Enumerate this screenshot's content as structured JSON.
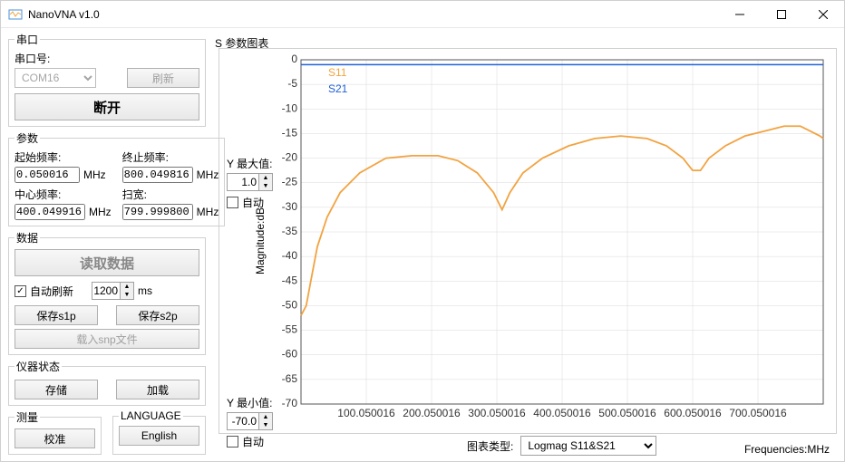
{
  "window": {
    "title": "NanoVNA v1.0"
  },
  "serial": {
    "legend": "串口",
    "port_label": "串口号:",
    "port_value": "COM16",
    "refresh": "刷新",
    "disconnect": "断开"
  },
  "params": {
    "legend": "参数",
    "start_label": "起始频率:",
    "start_value": "0.050016",
    "stop_label": "终止频率:",
    "stop_value": "800.049816",
    "center_label": "中心频率:",
    "center_value": "400.049916",
    "span_label": "扫宽:",
    "span_value": "799.999800",
    "unit": "MHz"
  },
  "data": {
    "legend": "数据",
    "read": "读取数据",
    "auto_refresh": "自动刷新",
    "auto_refresh_checked": true,
    "interval": "1200",
    "interval_unit": "ms",
    "save_s1p": "保存s1p",
    "save_s2p": "保存s2p",
    "load_snp": "载入snp文件"
  },
  "instrument": {
    "legend": "仪器状态",
    "store": "存储",
    "load": "加载"
  },
  "measure": {
    "legend": "测量",
    "calibrate": "校准"
  },
  "language": {
    "legend": "LANGUAGE",
    "english": "English"
  },
  "chart": {
    "title": "S 参数图表",
    "ymax_label": "Y 最大值:",
    "ymax_value": "1.0",
    "ymin_label": "Y 最小值:",
    "ymin_value": "-70.0",
    "auto_label": "自动",
    "ylabel": "Magnitude:dB",
    "xlabel": "Frequencies:MHz",
    "type_label": "图表类型:",
    "type_value": "Logmag S11&S21",
    "legend_s11": "S11",
    "legend_s21": "S21",
    "colors": {
      "s11": "#f2a341",
      "s21": "#1f5fd6",
      "grid": "#d8d8d8",
      "axis": "#555555",
      "bg": "#ffffff"
    },
    "ylim": [
      -70,
      0
    ],
    "yticks": [
      0,
      -5,
      -10,
      -15,
      -20,
      -25,
      -30,
      -35,
      -40,
      -45,
      -50,
      -55,
      -60,
      -65,
      -70
    ],
    "xticks": [
      "100.050016",
      "200.050016",
      "300.050016",
      "400.050016",
      "500.050016",
      "600.050016",
      "700.050016"
    ],
    "xtick_vals": [
      100,
      200,
      300,
      400,
      500,
      600,
      700
    ],
    "xlim": [
      0,
      800
    ],
    "s21_y": -1,
    "s11_path": [
      [
        0,
        -52
      ],
      [
        8,
        -50
      ],
      [
        15,
        -45
      ],
      [
        25,
        -38
      ],
      [
        40,
        -32
      ],
      [
        60,
        -27
      ],
      [
        90,
        -23
      ],
      [
        130,
        -20
      ],
      [
        170,
        -19.5
      ],
      [
        210,
        -19.5
      ],
      [
        240,
        -20.5
      ],
      [
        270,
        -23
      ],
      [
        295,
        -27
      ],
      [
        308,
        -30.5
      ],
      [
        320,
        -27
      ],
      [
        340,
        -23
      ],
      [
        370,
        -20
      ],
      [
        410,
        -17.5
      ],
      [
        450,
        -16
      ],
      [
        490,
        -15.5
      ],
      [
        530,
        -16
      ],
      [
        560,
        -17.5
      ],
      [
        585,
        -20
      ],
      [
        600,
        -22.5
      ],
      [
        612,
        -22.5
      ],
      [
        625,
        -20
      ],
      [
        650,
        -17.5
      ],
      [
        680,
        -15.5
      ],
      [
        710,
        -14.5
      ],
      [
        740,
        -13.5
      ],
      [
        765,
        -13.5
      ],
      [
        780,
        -14.5
      ],
      [
        795,
        -15.5
      ],
      [
        800,
        -16
      ]
    ]
  }
}
